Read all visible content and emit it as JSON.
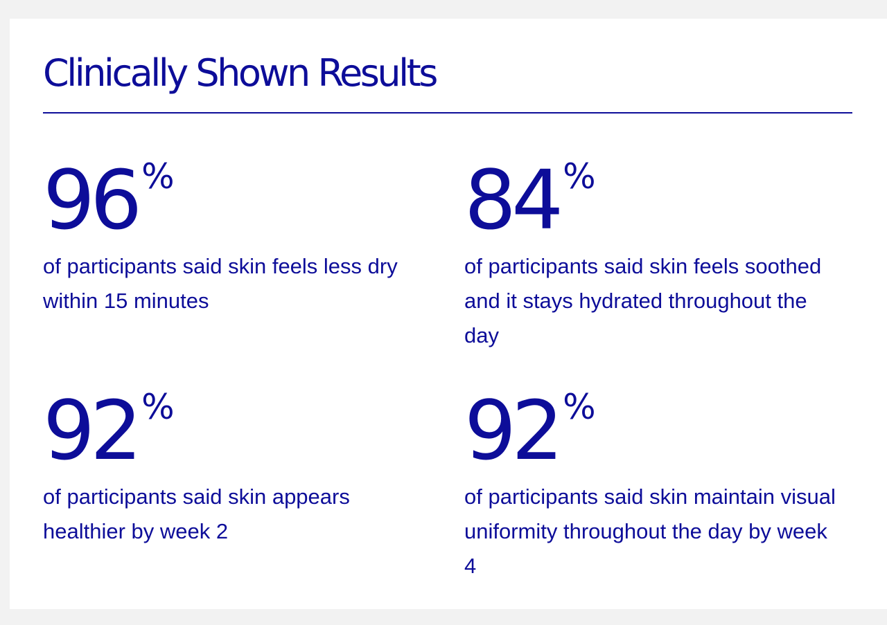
{
  "title": "Clinically Shown Results",
  "stats": [
    {
      "value": "96",
      "unit": "%",
      "description": "of participants said skin feels less dry within 15 minutes"
    },
    {
      "value": "84",
      "unit": "%",
      "description": "of participants said skin feels soothed and it stays hydrated throughout the day"
    },
    {
      "value": "92",
      "unit": "%",
      "description": "of participants said skin appears healthier by week 2"
    },
    {
      "value": "92",
      "unit": "%",
      "description": "of participants said skin maintain visual uniformity throughout the day by week 4"
    }
  ],
  "colors": {
    "accent": "#0d0d99",
    "background": "#f2f2f2",
    "card": "#ffffff"
  }
}
